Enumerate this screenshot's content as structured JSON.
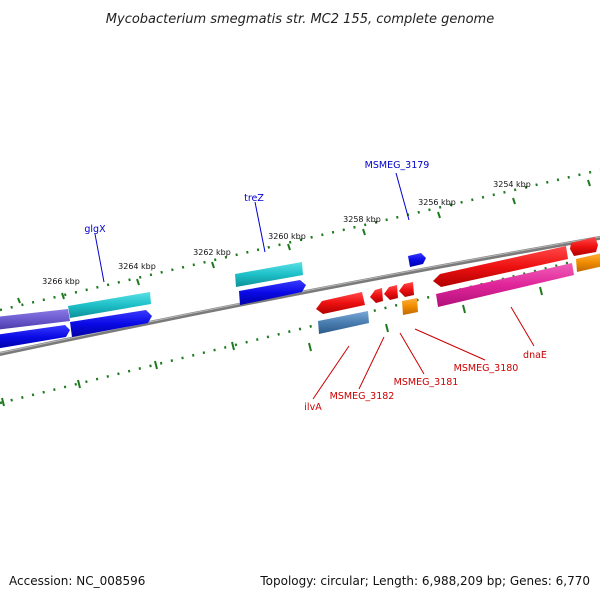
{
  "title": "Mycobacterium smegmatis str. MC2 155, complete genome",
  "ruler_labels": [
    "3254 kbp",
    "3256 kbp",
    "3258 kbp",
    "3260 kbp",
    "3262 kbp",
    "3264 kbp",
    "3266 kbp"
  ],
  "gene_labels": {
    "MSMEG_3179": "MSMEG_3179",
    "treZ": "treZ",
    "glgX": "glgX",
    "ilvA": "ilvA",
    "MSMEG_3182": "MSMEG_3182",
    "MSMEG_3181": "MSMEG_3181",
    "MSMEG_3180": "MSMEG_3180",
    "dnaE": "dnaE"
  },
  "colors": {
    "forward_label": "#0000cc",
    "reverse_label": "#cc0000",
    "ruler": "#1e7a1e",
    "backbone": "#808080",
    "blue": "#0a0ae6",
    "cyan": "#1ec0c8",
    "purple": "#6a5acd",
    "red": "#ee1111",
    "magenta": "#e0259a",
    "orange": "#f08c00",
    "steelblue": "#4a7db0"
  },
  "footer": {
    "accession": "Accession: NC_008596",
    "summary": "Topology: circular; Length: 6,988,209 bp; Genes: 6,770"
  }
}
